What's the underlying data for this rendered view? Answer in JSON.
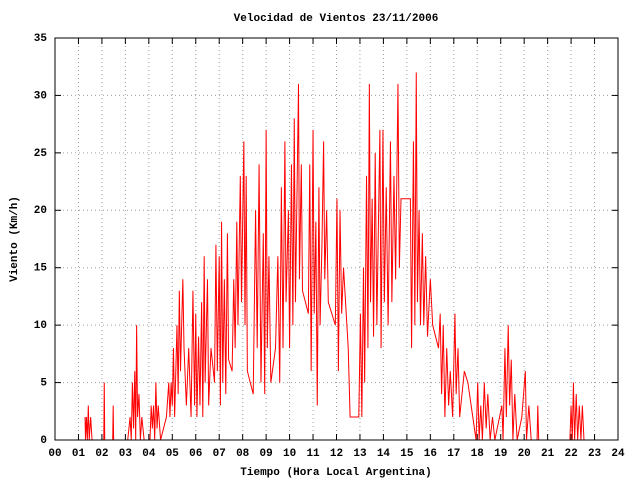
{
  "chart_data": {
    "type": "line",
    "title": "Velocidad de Vientos 23/11/2006",
    "x_label": "Tiempo (Hora Local Argentina)",
    "y_label": "Viento (Km/h)",
    "color": "#ff0000",
    "grid": true,
    "xlim": [
      0,
      24
    ],
    "xticks": [
      {
        "value": 0,
        "label": "00"
      },
      {
        "value": 1,
        "label": "01"
      },
      {
        "value": 2,
        "label": "02"
      },
      {
        "value": 3,
        "label": "03"
      },
      {
        "value": 4,
        "label": "04"
      },
      {
        "value": 5,
        "label": "05"
      },
      {
        "value": 6,
        "label": "06"
      },
      {
        "value": 7,
        "label": "07"
      },
      {
        "value": 8,
        "label": "08"
      },
      {
        "value": 9,
        "label": "09"
      },
      {
        "value": 10,
        "label": "10"
      },
      {
        "value": 11,
        "label": "11"
      },
      {
        "value": 12,
        "label": "12"
      },
      {
        "value": 13,
        "label": "13"
      },
      {
        "value": 14,
        "label": "14"
      },
      {
        "value": 15,
        "label": "15"
      },
      {
        "value": 16,
        "label": "16"
      },
      {
        "value": 17,
        "label": "17"
      },
      {
        "value": 18,
        "label": "18"
      },
      {
        "value": 19,
        "label": "19"
      },
      {
        "value": 20,
        "label": "20"
      },
      {
        "value": 21,
        "label": "21"
      },
      {
        "value": 22,
        "label": "22"
      },
      {
        "value": 23,
        "label": "23"
      },
      {
        "value": 24,
        "label": "24"
      }
    ],
    "ylim": [
      0,
      35
    ],
    "yticks": [
      0,
      5,
      10,
      15,
      20,
      25,
      30,
      35
    ],
    "x": [
      1.28,
      1.3,
      1.34,
      1.38,
      1.42,
      1.46,
      1.52,
      1.58,
      2.08,
      2.1,
      2.12,
      2.46,
      2.48,
      2.5,
      3.1,
      3.2,
      3.25,
      3.3,
      3.35,
      3.4,
      3.44,
      3.48,
      3.52,
      3.58,
      3.64,
      3.7,
      3.8,
      4.05,
      4.1,
      4.15,
      4.2,
      4.25,
      4.3,
      4.35,
      4.4,
      4.5,
      4.75,
      4.85,
      4.9,
      4.95,
      5.0,
      5.05,
      5.1,
      5.2,
      5.25,
      5.3,
      5.35,
      5.45,
      5.5,
      5.6,
      5.7,
      5.8,
      5.88,
      5.95,
      6.0,
      6.05,
      6.12,
      6.18,
      6.25,
      6.3,
      6.36,
      6.4,
      6.5,
      6.55,
      6.65,
      6.8,
      6.86,
      6.92,
      7.0,
      7.05,
      7.1,
      7.15,
      7.22,
      7.28,
      7.35,
      7.4,
      7.55,
      7.62,
      7.68,
      7.75,
      7.8,
      7.9,
      7.95,
      8.05,
      8.1,
      8.15,
      8.2,
      8.45,
      8.55,
      8.62,
      8.7,
      8.78,
      8.88,
      8.94,
      9.0,
      9.05,
      9.12,
      9.2,
      9.4,
      9.5,
      9.58,
      9.65,
      9.72,
      9.8,
      9.85,
      9.95,
      10.0,
      10.08,
      10.14,
      10.2,
      10.25,
      10.32,
      10.38,
      10.42,
      10.5,
      10.55,
      10.8,
      10.86,
      10.92,
      11.0,
      11.05,
      11.12,
      11.18,
      11.25,
      11.3,
      11.38,
      11.45,
      11.5,
      11.58,
      11.65,
      11.95,
      12.02,
      12.08,
      12.15,
      12.22,
      12.3,
      12.5,
      12.58,
      12.95,
      13.02,
      13.08,
      13.15,
      13.2,
      13.28,
      13.34,
      13.4,
      13.45,
      13.52,
      13.58,
      13.65,
      13.72,
      13.85,
      13.9,
      13.98,
      14.04,
      14.12,
      14.2,
      14.3,
      14.36,
      14.45,
      14.52,
      14.62,
      14.68,
      14.75,
      15.15,
      15.2,
      15.28,
      15.34,
      15.4,
      15.45,
      15.52,
      15.58,
      15.66,
      15.72,
      15.8,
      15.88,
      16.0,
      16.1,
      16.35,
      16.42,
      16.48,
      16.55,
      16.62,
      16.7,
      16.78,
      16.85,
      16.95,
      17.05,
      17.1,
      17.18,
      17.25,
      17.45,
      17.6,
      17.95,
      18.02,
      18.08,
      18.15,
      18.22,
      18.3,
      18.38,
      18.45,
      18.55,
      18.65,
      18.75,
      19.05,
      19.1,
      19.18,
      19.24,
      19.32,
      19.38,
      19.45,
      19.52,
      19.6,
      19.7,
      19.9,
      20.05,
      20.1,
      20.2,
      20.3,
      20.55,
      20.58,
      20.62,
      21.95,
      22.0,
      22.05,
      22.1,
      22.15,
      22.22,
      22.28,
      22.35,
      22.42,
      22.48,
      22.55
    ],
    "values": [
      2,
      0,
      2,
      0,
      3,
      0,
      2,
      0,
      0,
      5,
      0,
      0,
      3,
      0,
      0,
      2,
      0,
      5,
      1,
      6,
      0,
      10,
      2,
      4,
      0,
      2,
      0,
      0,
      3,
      1,
      3,
      0,
      5,
      1,
      3,
      0,
      2,
      5,
      2,
      5,
      3,
      8,
      2,
      10,
      4,
      13,
      6,
      14,
      8,
      3,
      8,
      2,
      13,
      3,
      11,
      2,
      9,
      3,
      12,
      2,
      16,
      5,
      14,
      3,
      8,
      5,
      17,
      6,
      16,
      3,
      19,
      5,
      14,
      4,
      18,
      7,
      6,
      14,
      8,
      19,
      10,
      23,
      12,
      26,
      10,
      23,
      6,
      4,
      20,
      8,
      24,
      5,
      18,
      4,
      27,
      8,
      16,
      5,
      8,
      16,
      5,
      22,
      8,
      26,
      12,
      20,
      8,
      24,
      10,
      28,
      12,
      22,
      31,
      14,
      24,
      13,
      11,
      24,
      6,
      27,
      11,
      19,
      3,
      22,
      10,
      17,
      26,
      14,
      20,
      12,
      10,
      21,
      6,
      20,
      11,
      15,
      8,
      2,
      2,
      11,
      2,
      15,
      5,
      23,
      8,
      31,
      12,
      21,
      9,
      25,
      10,
      27,
      8,
      27,
      12,
      22,
      10,
      26,
      12,
      23,
      14,
      31,
      15,
      21,
      21,
      8,
      26,
      10,
      32,
      12,
      20,
      10,
      18,
      10,
      16,
      9,
      14,
      10,
      8,
      11,
      4,
      10,
      2,
      8,
      3,
      6,
      2,
      11,
      4,
      8,
      2,
      6,
      5,
      0,
      5,
      0,
      3,
      0,
      5,
      1,
      4,
      0,
      2,
      0,
      3,
      0,
      8,
      2,
      10,
      3,
      7,
      0,
      4,
      0,
      2,
      6,
      0,
      3,
      0,
      0,
      3,
      0,
      0,
      3,
      0,
      5,
      0,
      4,
      0,
      3,
      0,
      3,
      0
    ]
  }
}
